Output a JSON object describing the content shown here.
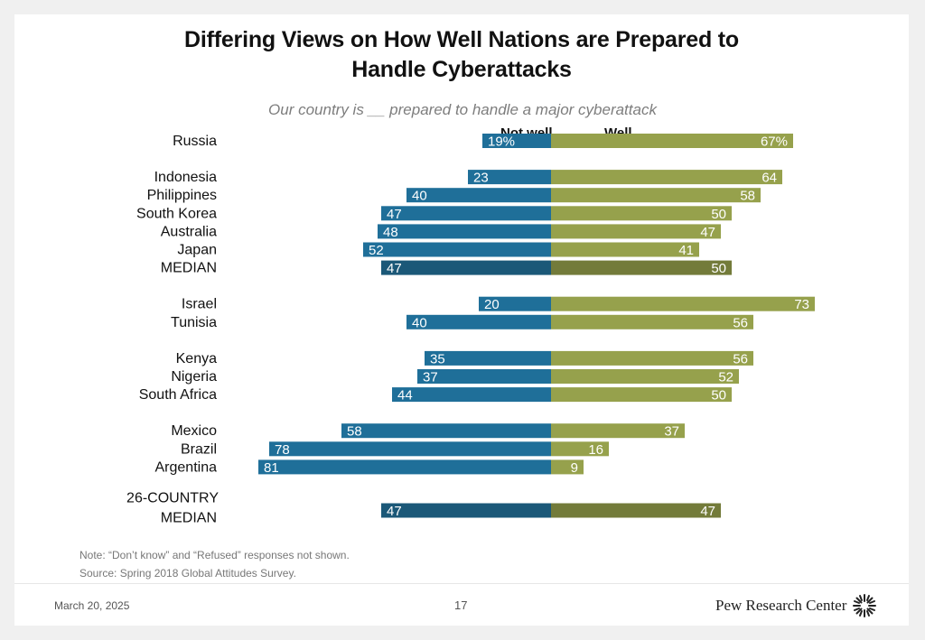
{
  "title_line1": "Differing Views on How Well Nations are Prepared to",
  "title_line2": "Handle Cyberattacks",
  "subtitle": "Our country is __ prepared to handle a major cyberattack",
  "note": "Note: “Don’t know” and “Refused” responses not shown.",
  "source": "Source: Spring 2018 Global Attitudes Survey.",
  "date": "March 20, 2025",
  "page_number": "17",
  "brand": "Pew Research Center",
  "chart_data": {
    "type": "bar",
    "orientation": "diverging-horizontal",
    "series": [
      {
        "name": "Not well",
        "color": "#1f6f99",
        "median_color": "#1b5878"
      },
      {
        "name": "Well",
        "color": "#96a14c",
        "median_color": "#737b3a"
      }
    ],
    "rows": [
      {
        "label": "Russia",
        "not_well": 19,
        "well": 67,
        "pct": true,
        "median": false,
        "group": 0
      },
      {
        "label": "Indonesia",
        "not_well": 23,
        "well": 64,
        "median": false,
        "group": 1
      },
      {
        "label": "Philippines",
        "not_well": 40,
        "well": 58,
        "median": false,
        "group": 1
      },
      {
        "label": "South Korea",
        "not_well": 47,
        "well": 50,
        "median": false,
        "group": 1
      },
      {
        "label": "Australia",
        "not_well": 48,
        "well": 47,
        "median": false,
        "group": 1
      },
      {
        "label": "Japan",
        "not_well": 52,
        "well": 41,
        "median": false,
        "group": 1
      },
      {
        "label": "MEDIAN",
        "not_well": 47,
        "well": 50,
        "median": true,
        "group": 1
      },
      {
        "label": "Israel",
        "not_well": 20,
        "well": 73,
        "median": false,
        "group": 2
      },
      {
        "label": "Tunisia",
        "not_well": 40,
        "well": 56,
        "median": false,
        "group": 2
      },
      {
        "label": "Kenya",
        "not_well": 35,
        "well": 56,
        "median": false,
        "group": 3
      },
      {
        "label": "Nigeria",
        "not_well": 37,
        "well": 52,
        "median": false,
        "group": 3
      },
      {
        "label": "South Africa",
        "not_well": 44,
        "well": 50,
        "median": false,
        "group": 3
      },
      {
        "label": "Mexico",
        "not_well": 58,
        "well": 37,
        "median": false,
        "group": 4
      },
      {
        "label": "Brazil",
        "not_well": 78,
        "well": 16,
        "median": false,
        "group": 4
      },
      {
        "label": "Argentina",
        "not_well": 81,
        "well": 9,
        "median": false,
        "group": 4
      },
      {
        "label": "26-COUNTRY",
        "label2": "MEDIAN",
        "not_well": 47,
        "well": 47,
        "median": true,
        "group": 5
      }
    ]
  }
}
